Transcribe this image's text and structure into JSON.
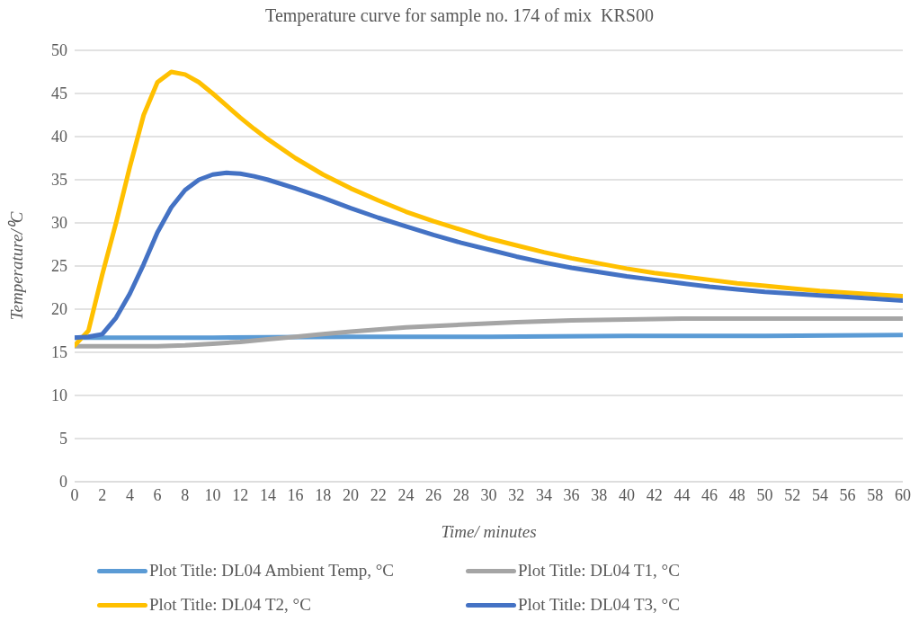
{
  "chart_data": {
    "type": "line",
    "title": "Temperature curve for sample no. 174 of mix  KRS00",
    "xlabel": "Time/ minutes",
    "ylabel": "Temperature/⁰C",
    "xlim": [
      0,
      60
    ],
    "xticks": [
      0,
      2,
      4,
      6,
      8,
      10,
      12,
      14,
      16,
      18,
      20,
      22,
      24,
      26,
      28,
      30,
      32,
      34,
      36,
      38,
      40,
      42,
      44,
      46,
      48,
      50,
      52,
      54,
      56,
      58,
      60
    ],
    "ylim": [
      0,
      50
    ],
    "yticks": [
      0,
      5,
      10,
      15,
      20,
      25,
      30,
      35,
      40,
      45,
      50
    ],
    "grid": "y",
    "legend": "bottom",
    "marker": "none",
    "line_style": "solid",
    "series": [
      {
        "name": "Plot Title: DL04 Ambient Temp, °C",
        "color": "#5b9bd5",
        "x": [
          0,
          10,
          20,
          30,
          40,
          50,
          60
        ],
        "values": [
          16.7,
          16.7,
          16.8,
          16.8,
          16.9,
          16.9,
          17.0
        ]
      },
      {
        "name": "Plot Title: DL04 T1, °C",
        "color": "#a5a5a5",
        "x": [
          0,
          4,
          6,
          8,
          10,
          12,
          14,
          16,
          18,
          20,
          24,
          28,
          32,
          36,
          40,
          44,
          50,
          56,
          60
        ],
        "values": [
          15.7,
          15.7,
          15.7,
          15.8,
          16.0,
          16.2,
          16.5,
          16.8,
          17.1,
          17.4,
          17.9,
          18.2,
          18.5,
          18.7,
          18.8,
          18.9,
          18.9,
          18.9,
          18.9
        ]
      },
      {
        "name": "Plot Title: DL04 T2, °C",
        "color": "#ffc000",
        "x": [
          0,
          1,
          2,
          3,
          4,
          5,
          6,
          7,
          8,
          9,
          10,
          11,
          12,
          13,
          14,
          16,
          18,
          20,
          22,
          24,
          26,
          28,
          30,
          32,
          34,
          36,
          38,
          40,
          42,
          44,
          46,
          48,
          50,
          52,
          54,
          56,
          58,
          60
        ],
        "values": [
          15.8,
          17.5,
          24,
          30,
          36.5,
          42.5,
          46.3,
          47.5,
          47.2,
          46.3,
          45,
          43.6,
          42.2,
          40.9,
          39.7,
          37.5,
          35.6,
          34,
          32.6,
          31.3,
          30.2,
          29.2,
          28.2,
          27.4,
          26.6,
          25.9,
          25.3,
          24.7,
          24.2,
          23.8,
          23.4,
          23,
          22.7,
          22.4,
          22.1,
          21.9,
          21.7,
          21.5
        ]
      },
      {
        "name": "Plot Title: DL04 T3, °C",
        "color": "#4472c4",
        "x": [
          0,
          1,
          2,
          3,
          4,
          5,
          6,
          7,
          8,
          9,
          10,
          11,
          12,
          13,
          14,
          16,
          18,
          20,
          22,
          24,
          26,
          28,
          30,
          32,
          34,
          36,
          38,
          40,
          42,
          44,
          46,
          48,
          50,
          52,
          54,
          56,
          58,
          60
        ],
        "values": [
          16.7,
          16.8,
          17.1,
          19,
          21.8,
          25.2,
          28.9,
          31.8,
          33.8,
          35,
          35.6,
          35.8,
          35.7,
          35.4,
          35,
          34,
          32.9,
          31.7,
          30.6,
          29.6,
          28.6,
          27.7,
          26.9,
          26.1,
          25.4,
          24.8,
          24.3,
          23.8,
          23.4,
          23,
          22.6,
          22.3,
          22,
          21.8,
          21.6,
          21.4,
          21.2,
          21
        ]
      }
    ]
  }
}
